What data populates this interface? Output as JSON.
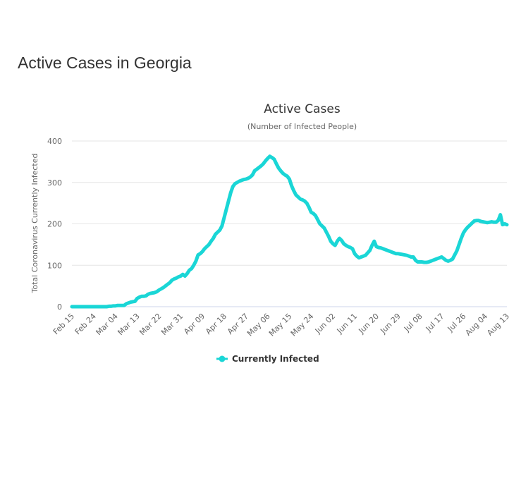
{
  "page": {
    "heading": "Active Cases in Georgia"
  },
  "chart_data": {
    "type": "line",
    "title": "Active Cases",
    "subtitle": "(Number of Infected People)",
    "ylabel": "Total Coronavirus Currently Infected",
    "xlabel": "",
    "ylim": [
      0,
      400
    ],
    "yticks": [
      0,
      100,
      200,
      300,
      400
    ],
    "grid": true,
    "legend_position": "bottom-center",
    "xticks": [
      "Feb 15",
      "Feb 24",
      "Mar 04",
      "Mar 13",
      "Mar 22",
      "Mar 31",
      "Apr 09",
      "Apr 18",
      "Apr 27",
      "May 06",
      "May 15",
      "May 24",
      "Jun 02",
      "Jun 11",
      "Jun 20",
      "Jun 29",
      "Jul 08",
      "Jul 17",
      "Jul 26",
      "Aug 04",
      "Aug 13"
    ],
    "x_start": "Feb 15",
    "x_end": "Aug 13",
    "series": [
      {
        "name": "Currently Infected",
        "color": "#1ad6d6",
        "values": [
          0,
          0,
          0,
          0,
          0,
          0,
          0,
          0,
          0,
          0,
          0,
          0,
          0,
          0,
          0,
          0,
          0,
          1,
          1,
          2,
          2,
          3,
          3,
          3,
          3,
          7,
          9,
          11,
          12,
          13,
          20,
          23,
          25,
          25,
          26,
          30,
          32,
          33,
          34,
          36,
          40,
          43,
          46,
          50,
          54,
          58,
          64,
          67,
          69,
          72,
          74,
          78,
          74,
          80,
          88,
          92,
          100,
          110,
          125,
          128,
          133,
          140,
          145,
          150,
          158,
          165,
          175,
          180,
          185,
          195,
          215,
          235,
          255,
          275,
          290,
          297,
          300,
          303,
          305,
          307,
          308,
          310,
          313,
          318,
          328,
          332,
          336,
          340,
          345,
          352,
          358,
          363,
          360,
          356,
          345,
          335,
          328,
          322,
          318,
          315,
          308,
          292,
          280,
          270,
          265,
          260,
          258,
          255,
          250,
          240,
          228,
          225,
          220,
          210,
          200,
          195,
          190,
          180,
          170,
          158,
          152,
          148,
          158,
          165,
          160,
          152,
          148,
          145,
          143,
          140,
          128,
          122,
          118,
          120,
          122,
          124,
          130,
          136,
          148,
          158,
          145,
          143,
          142,
          140,
          138,
          136,
          134,
          132,
          130,
          128,
          128,
          127,
          126,
          125,
          124,
          122,
          120,
          120,
          112,
          108,
          108,
          108,
          107,
          107,
          108,
          110,
          112,
          114,
          116,
          118,
          120,
          116,
          112,
          110,
          112,
          115,
          125,
          135,
          150,
          165,
          178,
          186,
          192,
          197,
          202,
          207,
          208,
          208,
          206,
          205,
          204,
          203,
          204,
          205,
          204,
          204,
          208,
          222,
          198,
          200,
          198
        ]
      }
    ]
  }
}
